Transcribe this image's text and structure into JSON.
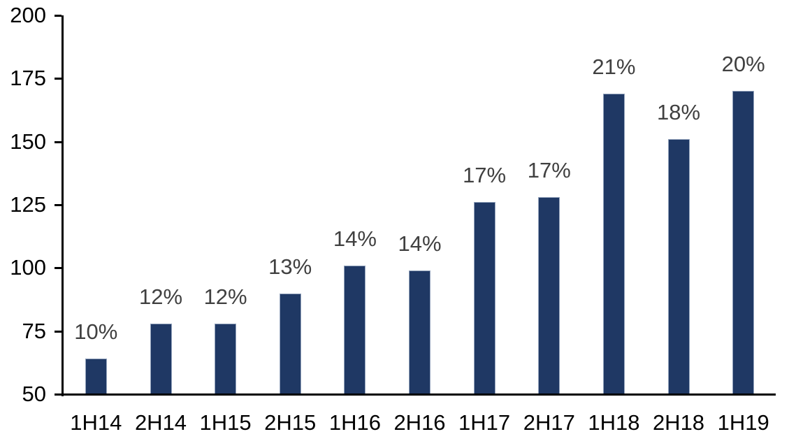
{
  "chart_data": {
    "type": "bar",
    "categories": [
      "1H14",
      "2H14",
      "1H15",
      "2H15",
      "1H16",
      "2H16",
      "1H17",
      "2H17",
      "1H18",
      "2H18",
      "1H19"
    ],
    "values": [
      64,
      78,
      78,
      90,
      101,
      99,
      126,
      128,
      169,
      151,
      170
    ],
    "bar_labels": [
      "10%",
      "12%",
      "12%",
      "13%",
      "14%",
      "14%",
      "17%",
      "17%",
      "21%",
      "18%",
      "20%"
    ],
    "title": "",
    "xlabel": "",
    "ylabel": "",
    "y_ticks": [
      50,
      75,
      100,
      125,
      150,
      175,
      200
    ],
    "ylim": [
      50,
      200
    ],
    "grid": false,
    "legend": false,
    "colors": {
      "bar_fill": "#1f3864",
      "bar_border": "#93a3bc",
      "axis": "#000000",
      "axis_tick_label": "#000000",
      "data_label": "#404040",
      "background": "#ffffff"
    }
  }
}
